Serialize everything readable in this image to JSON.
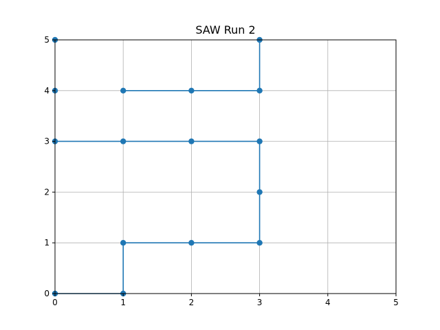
{
  "chart_data": {
    "type": "line",
    "title": "SAW Run 2",
    "xlabel": "",
    "ylabel": "",
    "xlim": [
      0,
      5
    ],
    "ylim": [
      0,
      5
    ],
    "xticks": [
      "0",
      "1",
      "2",
      "3",
      "4",
      "5"
    ],
    "yticks": [
      "0",
      "1",
      "2",
      "3",
      "4",
      "5"
    ],
    "grid": true,
    "series": [
      {
        "color": "#1f77b4",
        "marker": "circle",
        "x": [
          0,
          1,
          1,
          2,
          3,
          3,
          3,
          2,
          1,
          0,
          0,
          0,
          1,
          2,
          3,
          3
        ],
        "y": [
          0,
          0,
          1,
          1,
          1,
          2,
          3,
          3,
          3,
          3,
          4,
          5,
          4,
          4,
          4,
          5
        ],
        "segments": [
          [
            0,
            1
          ],
          [
            1,
            2
          ],
          [
            2,
            3
          ],
          [
            3,
            4
          ],
          [
            4,
            5
          ],
          [
            5,
            6
          ],
          [
            6,
            7
          ],
          [
            7,
            8
          ],
          [
            8,
            9
          ],
          [
            12,
            13
          ],
          [
            13,
            14
          ],
          [
            14,
            15
          ]
        ]
      }
    ]
  }
}
